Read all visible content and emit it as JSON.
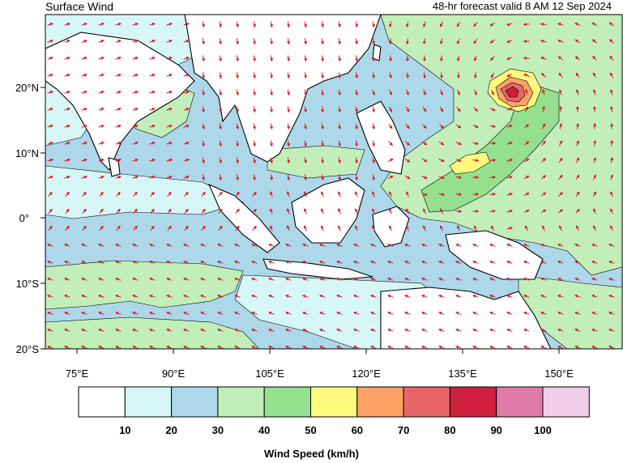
{
  "header": {
    "title": "Surface Wind",
    "valid": "48-hr forecast valid 8 AM 12 Sep 2024"
  },
  "map": {
    "lat_labels": [
      "20°N",
      "10°N",
      "0°",
      "10°S",
      "20°S"
    ],
    "lon_labels": [
      "75°E",
      "90°E",
      "105°E",
      "120°E",
      "135°E",
      "150°E"
    ],
    "region": {
      "lon": [
        70,
        160
      ],
      "lat": [
        -20,
        31
      ]
    },
    "typhoon_center": {
      "lon": 142,
      "lat": 19.5
    },
    "arrow_color": "#e0102a"
  },
  "legend": {
    "title": "Wind Speed (km/h)",
    "colors": [
      "#ffffff",
      "#d6f7f5",
      "#acd8ea",
      "#c2efb9",
      "#94e08e",
      "#fdfa7e",
      "#fda366",
      "#e86766",
      "#d0203f",
      "#e07aa6",
      "#f0cde8"
    ],
    "labels": [
      "10",
      "20",
      "30",
      "40",
      "50",
      "60",
      "70",
      "80",
      "90",
      "100"
    ]
  }
}
